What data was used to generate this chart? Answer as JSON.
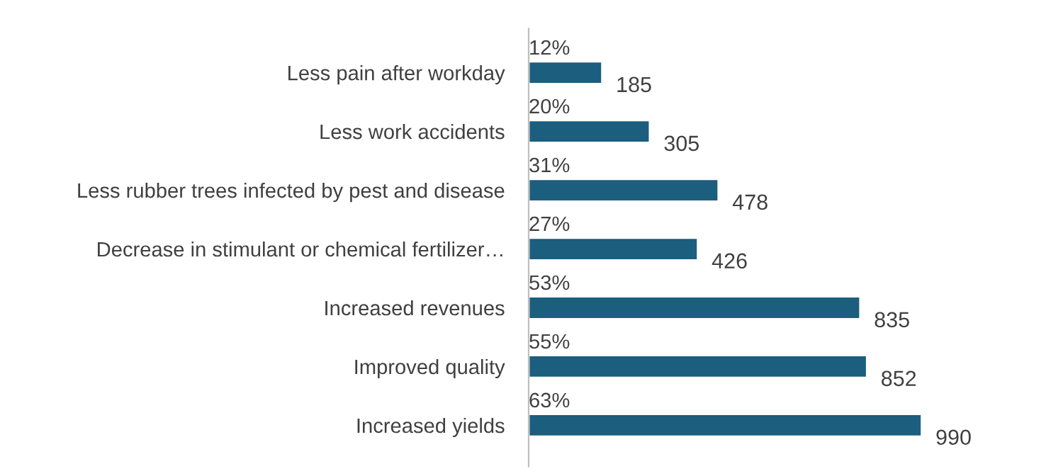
{
  "chart_data": {
    "type": "bar",
    "orientation": "horizontal",
    "categories": [
      "Less pain after workday",
      "Less work accidents",
      "Less rubber trees infected by pest and disease",
      "Decrease in stimulant or chemical fertilizer…",
      "Increased revenues",
      "Improved quality",
      "Increased yields"
    ],
    "values": [
      185,
      305,
      478,
      426,
      835,
      852,
      990
    ],
    "color": "#1b5e7e",
    "data_labels": true,
    "annotations": [
      "12%",
      "20%",
      "31%",
      "27%",
      "53%",
      "55%",
      "63%"
    ]
  }
}
